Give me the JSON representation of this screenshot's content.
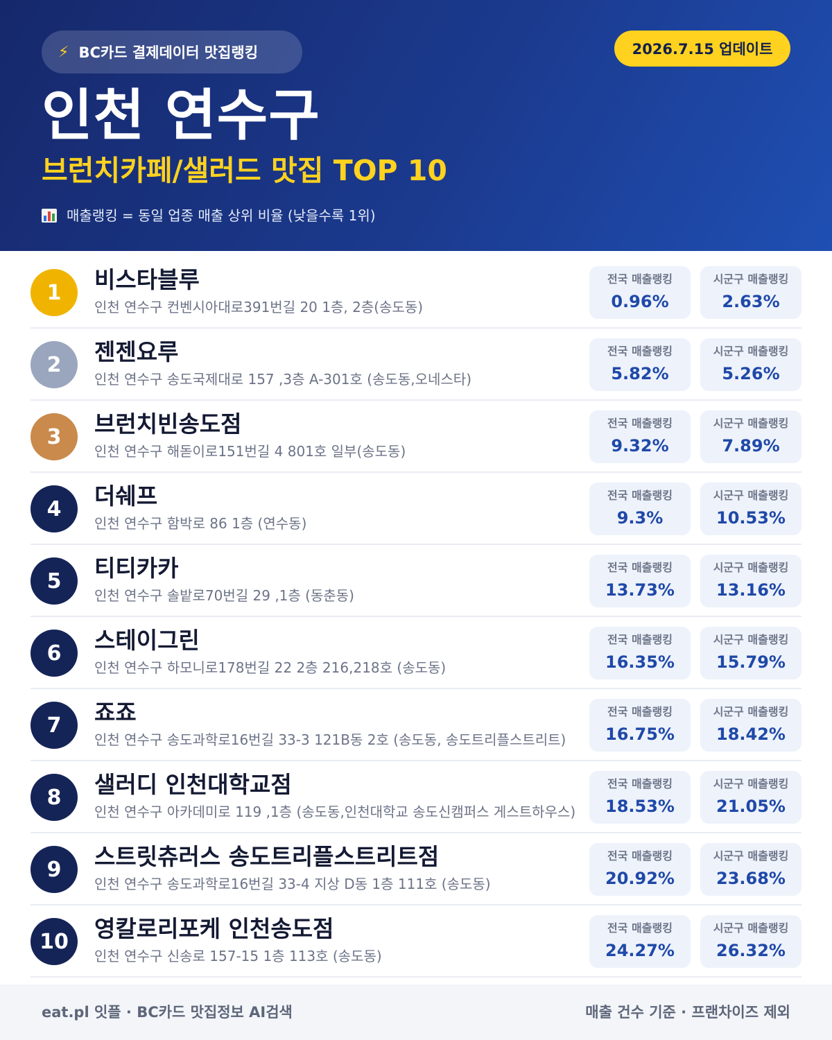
{
  "header": {
    "brand_icon": "lightning-icon",
    "brand_label": "BC카드 결제데이터 맛집랭킹",
    "update_label": "2026.7.15 업데이트",
    "title": "인천 연수구",
    "subtitle": "브런치카페/샐러드 맛집 TOP 10",
    "note_icon": "bar-chart-icon",
    "note": "매출랭킹 = 동일 업종 매출 상위 비율 (낮을수록 1위)"
  },
  "stat_labels": {
    "national": "전국 매출랭킹",
    "regional": "시군구 매출랭킹"
  },
  "colors": {
    "gold": "#f0b400",
    "silver": "#9aa6bd",
    "bronze": "#c98a4b",
    "navy": "#152457",
    "accent_yellow": "#ffd21f",
    "stat_value": "#1f49a8"
  },
  "restaurants": [
    {
      "rank": "1",
      "name": "비스타블루",
      "address": "인천 연수구 컨벤시아대로391번길 20 1층, 2층(송도동)",
      "national": "0.96%",
      "regional": "2.63%"
    },
    {
      "rank": "2",
      "name": "젠젠요루",
      "address": "인천 연수구 송도국제대로 157 ,3층 A-301호 (송도동,오네스타)",
      "national": "5.82%",
      "regional": "5.26%"
    },
    {
      "rank": "3",
      "name": "브런치빈송도점",
      "address": "인천 연수구 해돋이로151번길 4 801호 일부(송도동)",
      "national": "9.32%",
      "regional": "7.89%"
    },
    {
      "rank": "4",
      "name": "더쉐프",
      "address": "인천 연수구 함박로 86 1층 (연수동)",
      "national": "9.3%",
      "regional": "10.53%"
    },
    {
      "rank": "5",
      "name": "티티카카",
      "address": "인천 연수구 솔밭로70번길 29 ,1층 (동춘동)",
      "national": "13.73%",
      "regional": "13.16%"
    },
    {
      "rank": "6",
      "name": "스테이그린",
      "address": "인천 연수구 하모니로178번길 22 2층 216,218호 (송도동)",
      "national": "16.35%",
      "regional": "15.79%"
    },
    {
      "rank": "7",
      "name": "죠죠",
      "address": "인천 연수구 송도과학로16번길 33-3 121B동 2호 (송도동, 송도트리플스트리트)",
      "national": "16.75%",
      "regional": "18.42%"
    },
    {
      "rank": "8",
      "name": "샐러디 인천대학교점",
      "address": "인천 연수구 아카데미로 119 ,1층 (송도동,인천대학교 송도신캠퍼스 게스트하우스)",
      "national": "18.53%",
      "regional": "21.05%"
    },
    {
      "rank": "9",
      "name": "스트릿츄러스 송도트리플스트리트점",
      "address": "인천 연수구 송도과학로16번길 33-4 지상 D동 1층 111호 (송도동)",
      "national": "20.92%",
      "regional": "23.68%"
    },
    {
      "rank": "10",
      "name": "영칼로리포케 인천송도점",
      "address": "인천 연수구 신송로 157-15 1층 113호 (송도동)",
      "national": "24.27%",
      "regional": "26.32%"
    }
  ],
  "footer": {
    "left": "eat.pl 잇플 · BC카드 맛집정보 AI검색",
    "right": "매출 건수 기준 · 프랜차이즈 제외"
  }
}
